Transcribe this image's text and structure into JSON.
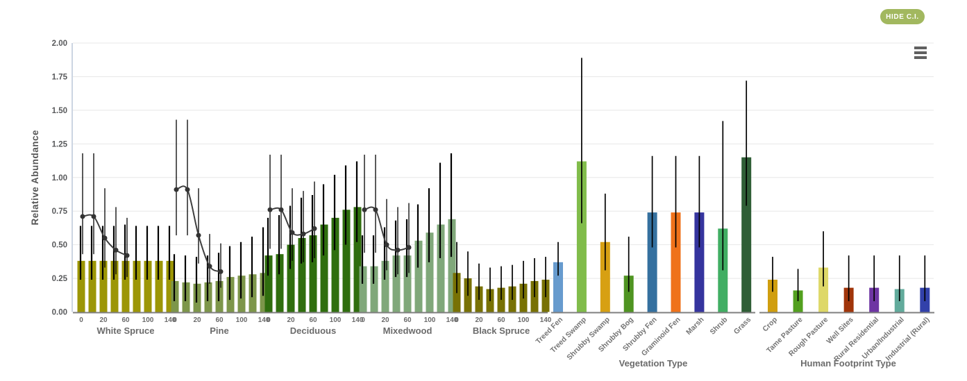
{
  "toolbar": {
    "hide_ci_label": "HIDE C.I.",
    "button_color": "#a2b85f",
    "button_text_color": "#ffffff"
  },
  "chart_data": {
    "type": "bar",
    "title": "",
    "ylabel": "Relative Abundance",
    "ylim": [
      0,
      2
    ],
    "ytick_step": 0.25,
    "grid": "horizontal",
    "ci_shown": true,
    "harvest_curve_color": "#3f3f3f",
    "forest_age_tick_labels": [
      "0",
      "20",
      "60",
      "100",
      "140"
    ],
    "forest_groups": [
      {
        "name": "White Spruce",
        "color": "#9c9606",
        "ages": [
          0,
          10,
          20,
          40,
          60,
          80,
          100,
          120,
          140
        ],
        "values": [
          0.38,
          0.38,
          0.38,
          0.38,
          0.38,
          0.38,
          0.38,
          0.38,
          0.38
        ],
        "ci_low": [
          0.24,
          0.24,
          0.24,
          0.24,
          0.24,
          0.24,
          0.24,
          0.24,
          0.24
        ],
        "ci_high": [
          0.64,
          0.64,
          0.64,
          0.64,
          0.65,
          0.64,
          0.64,
          0.64,
          0.64
        ],
        "harvest_curve": {
          "ages": [
            0,
            10,
            20,
            40,
            60
          ],
          "values": [
            0.71,
            0.71,
            0.55,
            0.46,
            0.42
          ],
          "ci_low": [
            0.43,
            0.43,
            0.33,
            0.28,
            0.26
          ],
          "ci_high": [
            1.18,
            1.18,
            0.92,
            0.78,
            0.7
          ]
        }
      },
      {
        "name": "Pine",
        "color": "#7d964a",
        "ages": [
          0,
          10,
          20,
          40,
          60,
          80,
          100,
          120,
          140
        ],
        "values": [
          0.23,
          0.22,
          0.21,
          0.22,
          0.23,
          0.26,
          0.27,
          0.28,
          0.29
        ],
        "ci_low": [
          0.08,
          0.08,
          0.07,
          0.08,
          0.08,
          0.09,
          0.1,
          0.11,
          0.12
        ],
        "ci_high": [
          0.43,
          0.42,
          0.41,
          0.42,
          0.44,
          0.49,
          0.52,
          0.56,
          0.63
        ],
        "harvest_curve": {
          "ages": [
            0,
            10,
            20,
            40,
            60
          ],
          "values": [
            0.91,
            0.91,
            0.57,
            0.34,
            0.3
          ],
          "ci_low": [
            0.57,
            0.57,
            0.36,
            0.21,
            0.18
          ],
          "ci_high": [
            1.43,
            1.43,
            0.92,
            0.58,
            0.51
          ]
        }
      },
      {
        "name": "Deciduous",
        "color": "#2f6e0e",
        "ages": [
          0,
          10,
          20,
          40,
          60,
          80,
          100,
          120,
          140
        ],
        "values": [
          0.42,
          0.43,
          0.5,
          0.55,
          0.57,
          0.65,
          0.7,
          0.76,
          0.78
        ],
        "ci_low": [
          0.27,
          0.28,
          0.32,
          0.36,
          0.37,
          0.42,
          0.46,
          0.5,
          0.52
        ],
        "ci_high": [
          0.7,
          0.72,
          0.79,
          0.85,
          0.87,
          0.95,
          1.02,
          1.09,
          1.12
        ],
        "harvest_curve": {
          "ages": [
            0,
            10,
            20,
            40,
            60
          ],
          "values": [
            0.76,
            0.76,
            0.59,
            0.58,
            0.62
          ],
          "ci_low": [
            0.47,
            0.47,
            0.38,
            0.37,
            0.4
          ],
          "ci_high": [
            1.17,
            1.17,
            0.92,
            0.9,
            0.97
          ]
        }
      },
      {
        "name": "Mixedwood",
        "color": "#80a87a",
        "ages": [
          0,
          10,
          20,
          40,
          60,
          80,
          100,
          120,
          140
        ],
        "values": [
          0.34,
          0.34,
          0.38,
          0.42,
          0.42,
          0.53,
          0.59,
          0.65,
          0.69
        ],
        "ci_low": [
          0.21,
          0.21,
          0.24,
          0.26,
          0.26,
          0.33,
          0.37,
          0.4,
          0.41
        ],
        "ci_high": [
          0.57,
          0.57,
          0.63,
          0.68,
          0.69,
          0.8,
          0.92,
          1.11,
          1.18
        ],
        "harvest_curve": {
          "ages": [
            0,
            10,
            20,
            40,
            60
          ],
          "values": [
            0.76,
            0.76,
            0.5,
            0.46,
            0.48
          ],
          "ci_low": [
            0.44,
            0.44,
            0.31,
            0.28,
            0.29
          ],
          "ci_high": [
            1.17,
            1.17,
            0.84,
            0.78,
            0.81
          ]
        }
      },
      {
        "name": "Black Spruce",
        "color": "#787104",
        "ages": [
          0,
          10,
          20,
          40,
          60,
          80,
          100,
          120,
          140
        ],
        "values": [
          0.29,
          0.25,
          0.19,
          0.17,
          0.18,
          0.19,
          0.21,
          0.23,
          0.24
        ],
        "ci_low": [
          0.14,
          0.12,
          0.09,
          0.08,
          0.09,
          0.09,
          0.1,
          0.11,
          0.11
        ],
        "ci_high": [
          0.52,
          0.45,
          0.36,
          0.33,
          0.34,
          0.35,
          0.38,
          0.4,
          0.41
        ],
        "harvest_curve": null
      }
    ],
    "vegetation": {
      "axis_title": "Vegetation Type",
      "categories": [
        "Treed Fen",
        "Treed Swamp",
        "Shrubby Swamp",
        "Shrubby Bog",
        "Shrubby Fen",
        "Graminoid Fen",
        "Marsh",
        "Shrub",
        "Grass"
      ],
      "colors": [
        "#679bce",
        "#80bc4a",
        "#d7a013",
        "#4f9421",
        "#35709f",
        "#ef721a",
        "#35349e",
        "#41ae63",
        "#2f5e36"
      ],
      "values": [
        0.37,
        1.12,
        0.52,
        0.27,
        0.74,
        0.74,
        0.74,
        0.62,
        1.15
      ],
      "ci_low": [
        0.27,
        0.66,
        0.31,
        0.15,
        0.48,
        0.48,
        0.48,
        0.31,
        0.79
      ],
      "ci_high": [
        0.52,
        1.89,
        0.88,
        0.56,
        1.16,
        1.16,
        1.16,
        1.42,
        1.72
      ]
    },
    "human_footprint": {
      "axis_title": "Human Footprint Type",
      "categories": [
        "Crop",
        "Tame Pasture",
        "Rough Pasture",
        "Well Sites",
        "Rural Residential",
        "Urban/Industrial",
        "Industrial (Rural)"
      ],
      "colors": [
        "#d09e0f",
        "#52a01e",
        "#ded868",
        "#a0350a",
        "#6e35a3",
        "#62ab9c",
        "#3241aa"
      ],
      "values": [
        0.24,
        0.16,
        0.33,
        0.18,
        0.18,
        0.17,
        0.18
      ],
      "ci_low": [
        0.15,
        0.08,
        0.19,
        0.08,
        0.08,
        0.08,
        0.08
      ],
      "ci_high": [
        0.41,
        0.32,
        0.6,
        0.42,
        0.42,
        0.42,
        0.42
      ]
    }
  }
}
